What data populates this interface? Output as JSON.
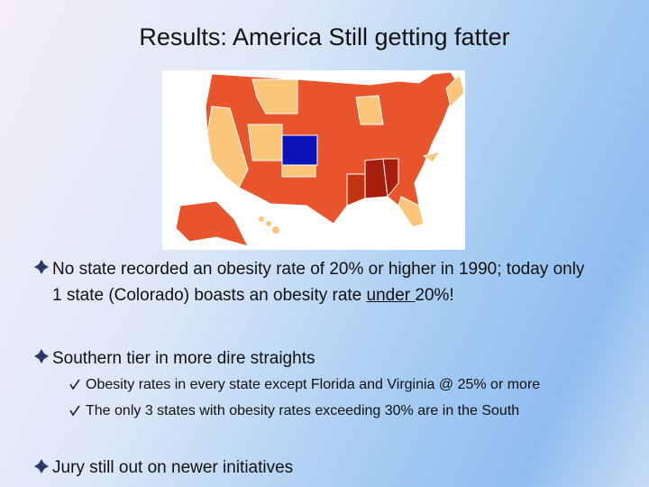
{
  "header": {
    "title": "Results: America Still getting fatter"
  },
  "bullets": [
    {
      "text_before": "No state recorded an obesity rate of 20% or higher in 1990; today only 1 state (Colorado) boasts an obesity rate ",
      "underlined": "under ",
      "text_after": "20%!"
    },
    {
      "text": "Southern tier in more dire straights",
      "sub_bullets": [
        "Obesity rates in every state except Florida and Virginia @ 25% or more",
        "The only 3 states with obesity rates exceeding 30% are in the South"
      ]
    },
    {
      "text": "Jury still out on newer initiatives"
    }
  ]
}
